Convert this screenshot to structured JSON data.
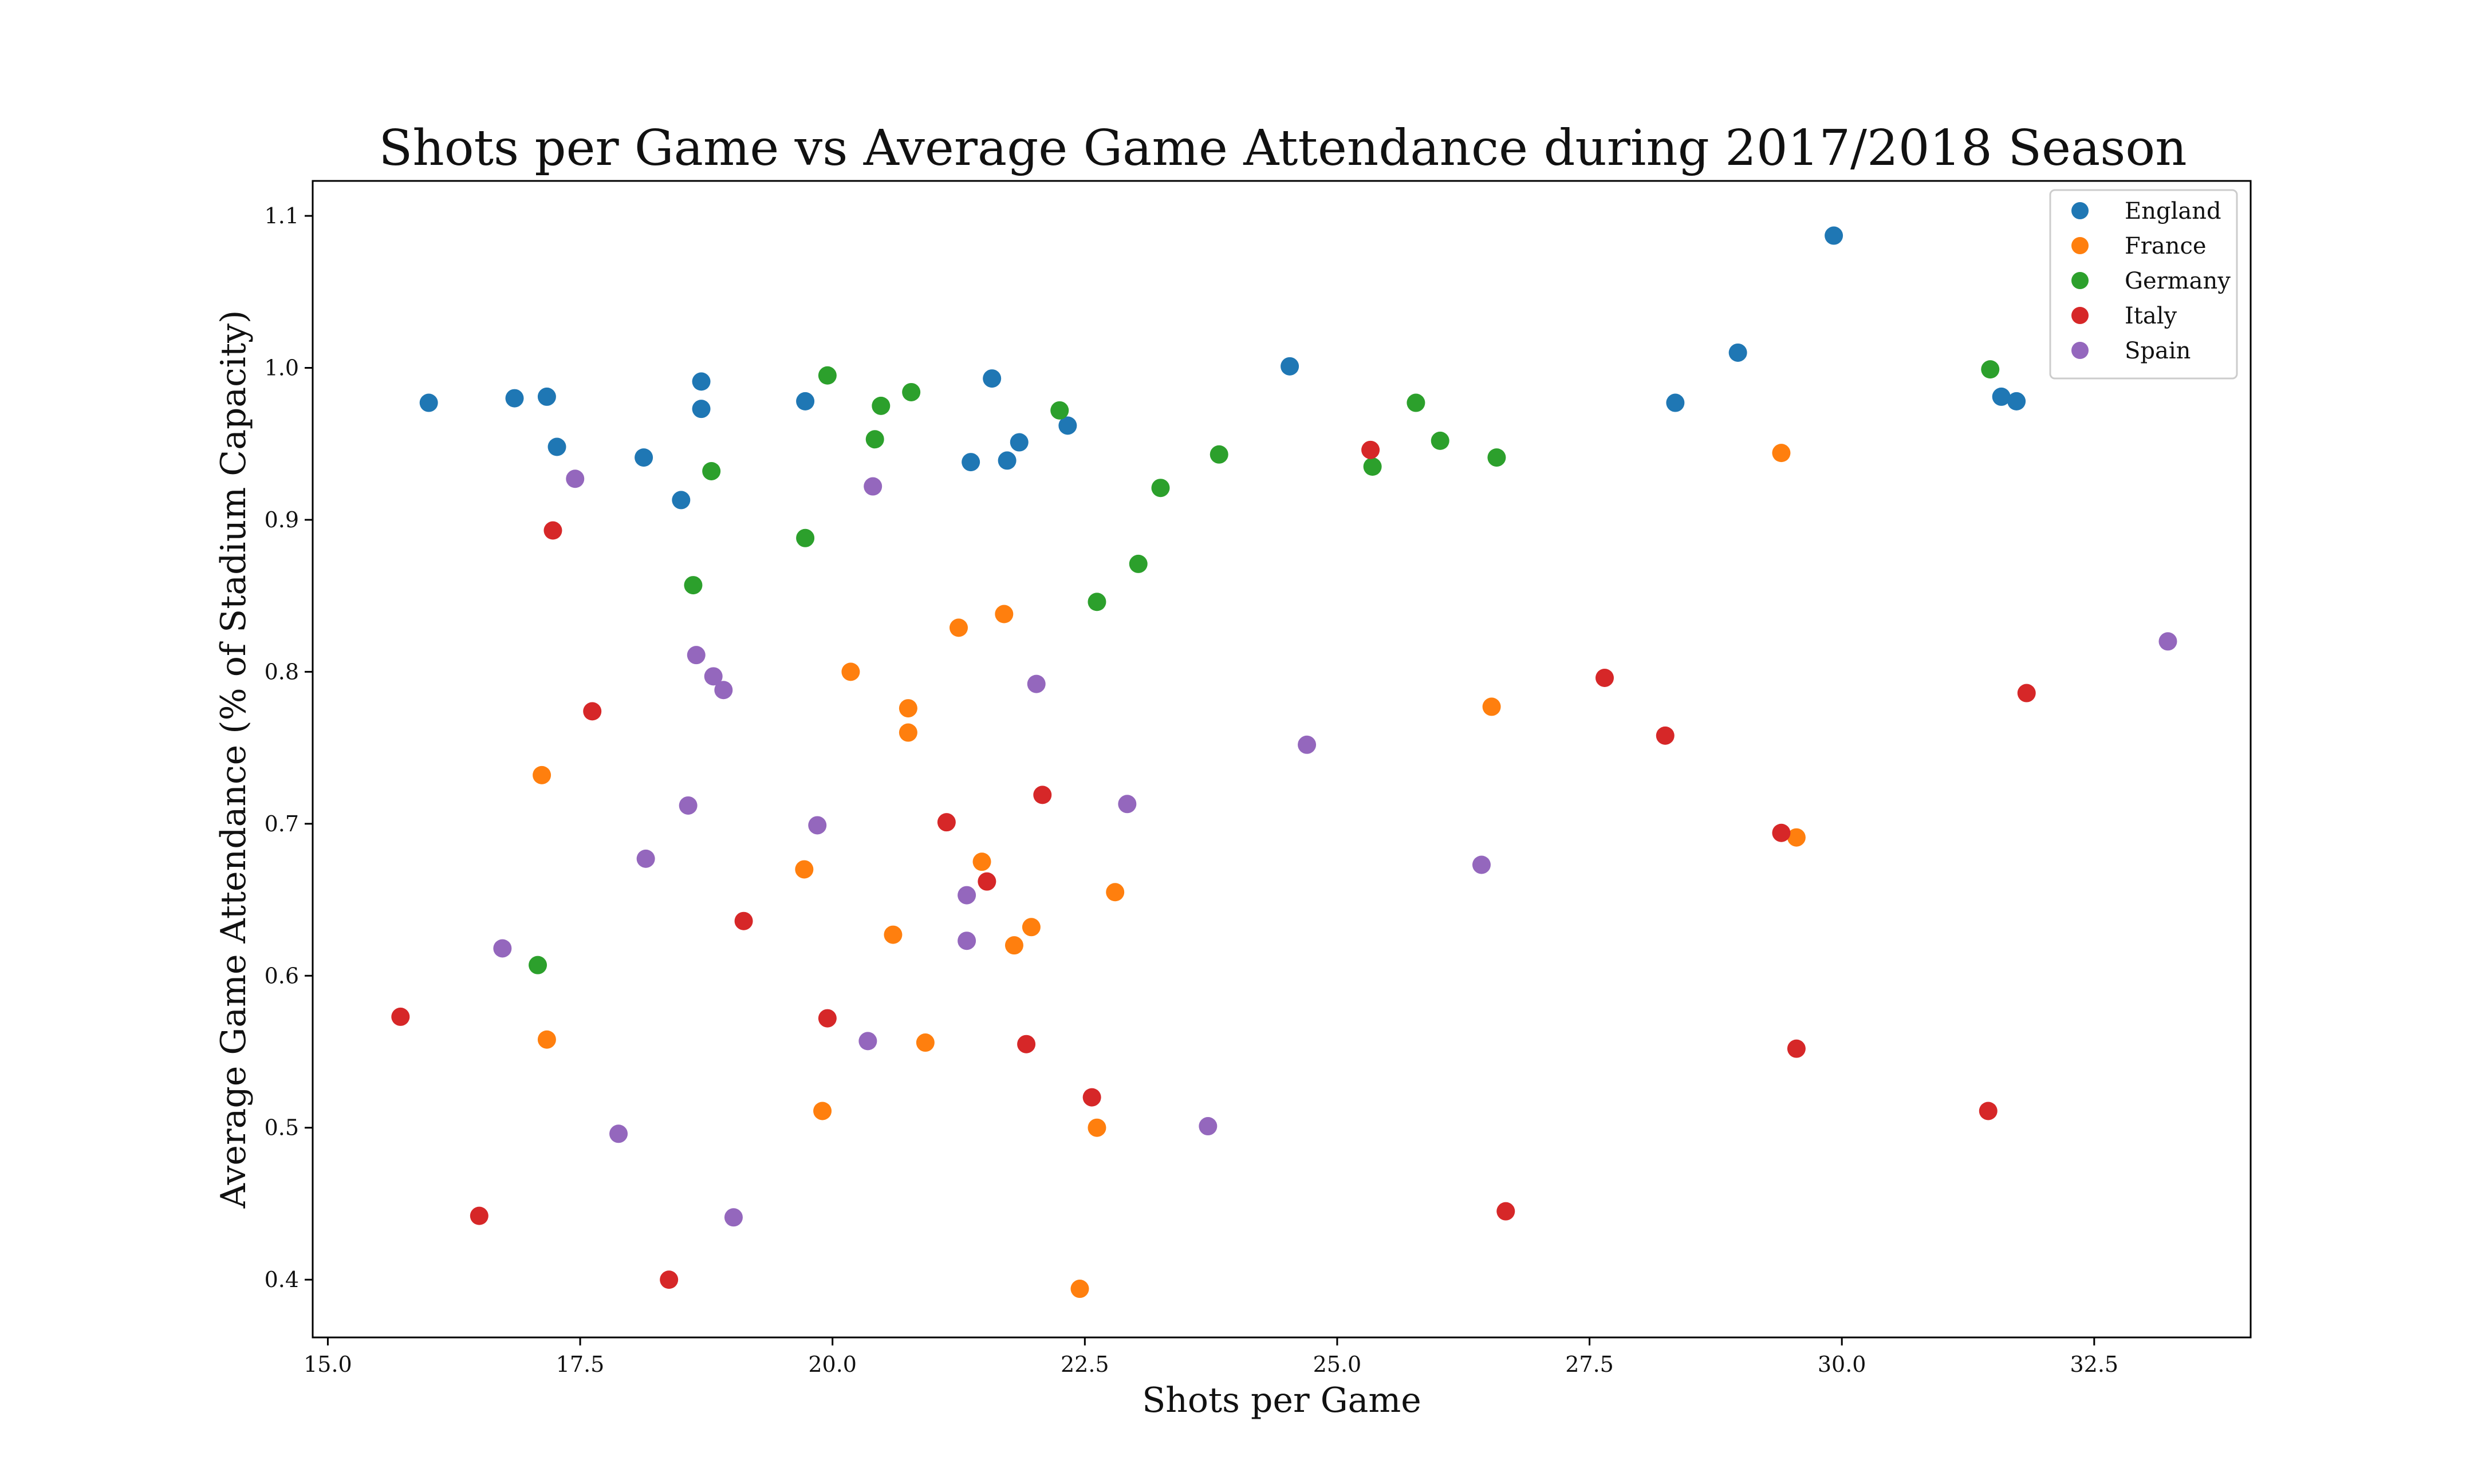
{
  "chart_data": {
    "type": "scatter",
    "title": "Shots per Game vs Average Game Attendance during 2017/2018 Season",
    "xlabel": "Shots per Game",
    "ylabel": "Average Game Attendance (% of Stadium Capacity)",
    "xlim": [
      14.85,
      34.05
    ],
    "ylim": [
      0.362,
      1.123
    ],
    "xticks": [
      "15.0",
      "17.5",
      "20.0",
      "22.5",
      "25.0",
      "27.5",
      "30.0",
      "32.5"
    ],
    "yticks": [
      "0.4",
      "0.5",
      "0.6",
      "0.7",
      "0.8",
      "0.9",
      "1.0",
      "1.1"
    ],
    "grid": false,
    "legend_position": "top-right",
    "series": [
      {
        "name": "England",
        "color": "#1f77b4",
        "points": [
          [
            16.0,
            0.977
          ],
          [
            16.85,
            0.98
          ],
          [
            17.17,
            0.981
          ],
          [
            17.27,
            0.948
          ],
          [
            18.13,
            0.941
          ],
          [
            18.5,
            0.913
          ],
          [
            18.7,
            0.991
          ],
          [
            18.7,
            0.973
          ],
          [
            19.73,
            0.978
          ],
          [
            21.37,
            0.938
          ],
          [
            21.58,
            0.993
          ],
          [
            21.73,
            0.939
          ],
          [
            21.85,
            0.951
          ],
          [
            22.33,
            0.962
          ],
          [
            24.53,
            1.001
          ],
          [
            28.35,
            0.977
          ],
          [
            28.97,
            1.01
          ],
          [
            29.92,
            1.087
          ],
          [
            31.58,
            0.981
          ],
          [
            31.73,
            0.978
          ]
        ]
      },
      {
        "name": "France",
        "color": "#ff7f0e",
        "points": [
          [
            17.12,
            0.732
          ],
          [
            17.17,
            0.558
          ],
          [
            19.72,
            0.67
          ],
          [
            19.9,
            0.511
          ],
          [
            20.18,
            0.8
          ],
          [
            20.6,
            0.627
          ],
          [
            20.75,
            0.776
          ],
          [
            20.75,
            0.76
          ],
          [
            20.92,
            0.556
          ],
          [
            21.25,
            0.829
          ],
          [
            21.48,
            0.675
          ],
          [
            21.7,
            0.838
          ],
          [
            21.8,
            0.62
          ],
          [
            21.97,
            0.632
          ],
          [
            22.45,
            0.394
          ],
          [
            22.62,
            0.5
          ],
          [
            22.8,
            0.655
          ],
          [
            26.53,
            0.777
          ],
          [
            29.4,
            0.944
          ],
          [
            29.55,
            0.691
          ]
        ]
      },
      {
        "name": "Germany",
        "color": "#2ca02c",
        "points": [
          [
            17.08,
            0.607
          ],
          [
            18.62,
            0.857
          ],
          [
            18.8,
            0.932
          ],
          [
            19.73,
            0.888
          ],
          [
            19.95,
            0.995
          ],
          [
            20.42,
            0.953
          ],
          [
            20.48,
            0.975
          ],
          [
            20.78,
            0.984
          ],
          [
            22.25,
            0.972
          ],
          [
            22.62,
            0.846
          ],
          [
            23.03,
            0.871
          ],
          [
            23.25,
            0.921
          ],
          [
            23.83,
            0.943
          ],
          [
            25.35,
            0.935
          ],
          [
            25.78,
            0.977
          ],
          [
            26.02,
            0.952
          ],
          [
            26.58,
            0.941
          ],
          [
            31.47,
            0.999
          ]
        ]
      },
      {
        "name": "Italy",
        "color": "#d62728",
        "points": [
          [
            15.72,
            0.573
          ],
          [
            16.5,
            0.442
          ],
          [
            17.23,
            0.893
          ],
          [
            17.62,
            0.774
          ],
          [
            18.38,
            0.4
          ],
          [
            19.12,
            0.636
          ],
          [
            19.95,
            0.572
          ],
          [
            21.13,
            0.701
          ],
          [
            21.53,
            0.662
          ],
          [
            21.92,
            0.555
          ],
          [
            22.08,
            0.719
          ],
          [
            22.57,
            0.52
          ],
          [
            25.33,
            0.946
          ],
          [
            26.67,
            0.445
          ],
          [
            27.65,
            0.796
          ],
          [
            28.25,
            0.758
          ],
          [
            29.4,
            0.694
          ],
          [
            29.55,
            0.552
          ],
          [
            31.45,
            0.511
          ],
          [
            31.83,
            0.786
          ]
        ]
      },
      {
        "name": "Spain",
        "color": "#9467bd",
        "points": [
          [
            16.73,
            0.618
          ],
          [
            17.45,
            0.927
          ],
          [
            17.88,
            0.496
          ],
          [
            18.15,
            0.677
          ],
          [
            18.57,
            0.712
          ],
          [
            18.65,
            0.811
          ],
          [
            18.82,
            0.797
          ],
          [
            18.92,
            0.788
          ],
          [
            19.02,
            0.441
          ],
          [
            19.85,
            0.699
          ],
          [
            20.35,
            0.557
          ],
          [
            20.4,
            0.922
          ],
          [
            21.33,
            0.653
          ],
          [
            21.33,
            0.623
          ],
          [
            22.02,
            0.792
          ],
          [
            22.92,
            0.713
          ],
          [
            23.72,
            0.501
          ],
          [
            24.7,
            0.752
          ],
          [
            26.43,
            0.673
          ],
          [
            33.23,
            0.82
          ]
        ]
      }
    ]
  }
}
